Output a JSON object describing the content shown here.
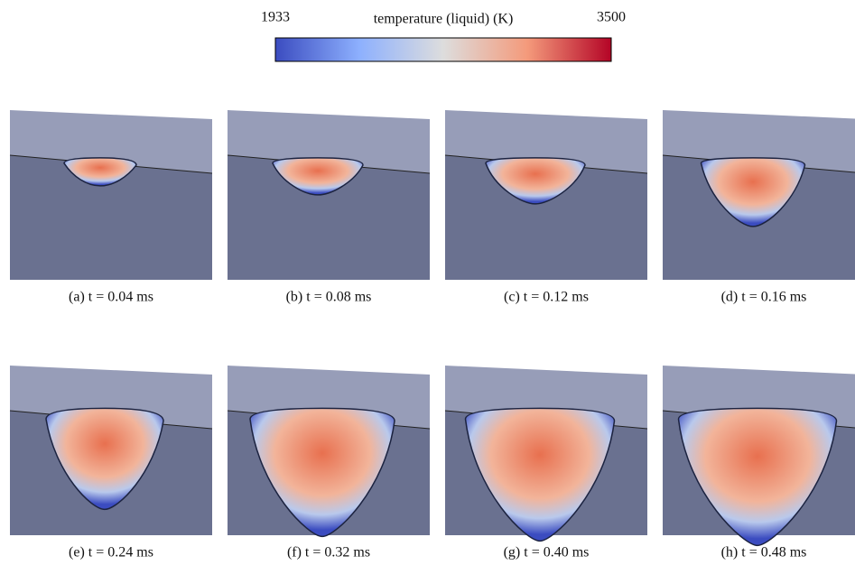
{
  "colorbar": {
    "title": "temperature (liquid) (K)",
    "min": "1933",
    "max": "3500"
  },
  "panels": [
    {
      "caption": "(a) t = 0.04 ms"
    },
    {
      "caption": "(b) t = 0.08 ms"
    },
    {
      "caption": "(c) t = 0.12 ms"
    },
    {
      "caption": "(d) t = 0.16 ms"
    },
    {
      "caption": "(e) t = 0.24 ms"
    },
    {
      "caption": "(f) t = 0.32 ms"
    },
    {
      "caption": "(g) t = 0.40 ms"
    },
    {
      "caption": "(h) t = 0.48 ms"
    }
  ]
}
